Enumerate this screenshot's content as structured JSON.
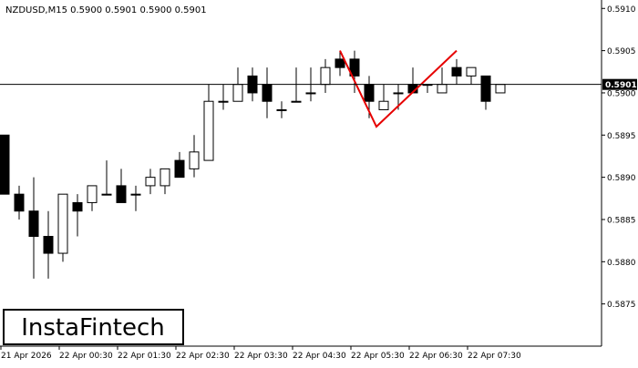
{
  "chart_data": {
    "type": "candlestick",
    "title": "NZDUSD,M15  0.5900 0.5901 0.5900 0.5901",
    "symbol": "NZDUSD",
    "timeframe": "M15",
    "ohlc_readout": "0.5900 0.5901 0.5900 0.5901",
    "ylim": [
      0.587,
      0.5911
    ],
    "y_ticks": [
      "0.5910",
      "0.5905",
      "0.5900",
      "0.5895",
      "0.5890",
      "0.5885",
      "0.5880",
      "0.5875"
    ],
    "x_ticks": [
      {
        "index": 0,
        "label": "21 Apr 2026"
      },
      {
        "index": 4,
        "label": "22 Apr 00:30"
      },
      {
        "index": 8,
        "label": "22 Apr 01:30"
      },
      {
        "index": 12,
        "label": "22 Apr 02:30"
      },
      {
        "index": 16,
        "label": "22 Apr 03:30"
      },
      {
        "index": 20,
        "label": "22 Apr 04:30"
      },
      {
        "index": 24,
        "label": "22 Apr 05:30"
      },
      {
        "index": 28,
        "label": "22 Apr 06:30"
      },
      {
        "index": 32,
        "label": "22 Apr 07:30"
      }
    ],
    "current_price": 0.5901,
    "current_price_label": "0.5901",
    "candles": [
      {
        "o": 0.5895,
        "h": 0.5895,
        "l": 0.5888,
        "c": 0.5888
      },
      {
        "o": 0.5888,
        "h": 0.5889,
        "l": 0.5885,
        "c": 0.5886
      },
      {
        "o": 0.5886,
        "h": 0.589,
        "l": 0.5878,
        "c": 0.5883
      },
      {
        "o": 0.5883,
        "h": 0.5886,
        "l": 0.5878,
        "c": 0.5881
      },
      {
        "o": 0.5881,
        "h": 0.5888,
        "l": 0.588,
        "c": 0.5888
      },
      {
        "o": 0.5887,
        "h": 0.5888,
        "l": 0.5883,
        "c": 0.5886
      },
      {
        "o": 0.5887,
        "h": 0.5889,
        "l": 0.5886,
        "c": 0.5889
      },
      {
        "o": 0.5888,
        "h": 0.5892,
        "l": 0.5888,
        "c": 0.5888
      },
      {
        "o": 0.5889,
        "h": 0.5891,
        "l": 0.5887,
        "c": 0.5887
      },
      {
        "o": 0.5888,
        "h": 0.5889,
        "l": 0.5886,
        "c": 0.5888
      },
      {
        "o": 0.5889,
        "h": 0.5891,
        "l": 0.5888,
        "c": 0.589
      },
      {
        "o": 0.5889,
        "h": 0.5891,
        "l": 0.5888,
        "c": 0.5891
      },
      {
        "o": 0.5892,
        "h": 0.5893,
        "l": 0.589,
        "c": 0.589
      },
      {
        "o": 0.5891,
        "h": 0.5895,
        "l": 0.589,
        "c": 0.5893
      },
      {
        "o": 0.5892,
        "h": 0.5901,
        "l": 0.5892,
        "c": 0.5899
      },
      {
        "o": 0.5899,
        "h": 0.5901,
        "l": 0.5898,
        "c": 0.5899
      },
      {
        "o": 0.5899,
        "h": 0.5903,
        "l": 0.5899,
        "c": 0.5901
      },
      {
        "o": 0.5902,
        "h": 0.5903,
        "l": 0.5899,
        "c": 0.59
      },
      {
        "o": 0.5901,
        "h": 0.5903,
        "l": 0.5897,
        "c": 0.5899
      },
      {
        "o": 0.5898,
        "h": 0.5899,
        "l": 0.5897,
        "c": 0.5898
      },
      {
        "o": 0.5899,
        "h": 0.5903,
        "l": 0.5899,
        "c": 0.5899
      },
      {
        "o": 0.59,
        "h": 0.5903,
        "l": 0.5899,
        "c": 0.59
      },
      {
        "o": 0.5901,
        "h": 0.5904,
        "l": 0.59,
        "c": 0.5903
      },
      {
        "o": 0.5904,
        "h": 0.5905,
        "l": 0.5902,
        "c": 0.5903
      },
      {
        "o": 0.5904,
        "h": 0.5905,
        "l": 0.59,
        "c": 0.5902
      },
      {
        "o": 0.5901,
        "h": 0.5902,
        "l": 0.5897,
        "c": 0.5899
      },
      {
        "o": 0.5898,
        "h": 0.5901,
        "l": 0.5898,
        "c": 0.5899
      },
      {
        "o": 0.59,
        "h": 0.5901,
        "l": 0.5898,
        "c": 0.59
      },
      {
        "o": 0.5901,
        "h": 0.5903,
        "l": 0.59,
        "c": 0.59
      },
      {
        "o": 0.5901,
        "h": 0.5901,
        "l": 0.59,
        "c": 0.5901
      },
      {
        "o": 0.59,
        "h": 0.5903,
        "l": 0.59,
        "c": 0.5901
      },
      {
        "o": 0.5903,
        "h": 0.5904,
        "l": 0.5901,
        "c": 0.5902
      },
      {
        "o": 0.5902,
        "h": 0.5903,
        "l": 0.5901,
        "c": 0.5903
      },
      {
        "o": 0.5902,
        "h": 0.5902,
        "l": 0.5898,
        "c": 0.5899
      },
      {
        "o": 0.59,
        "h": 0.5901,
        "l": 0.59,
        "c": 0.5901
      }
    ],
    "pattern": {
      "name": "Double Top",
      "color": "#e60000",
      "points": [
        {
          "index": 23,
          "price": 0.5905
        },
        {
          "index": 25.5,
          "price": 0.5896
        },
        {
          "index": 31,
          "price": 0.5905
        }
      ]
    },
    "colors": {
      "bull_body": "#ffffff",
      "bear_body": "#000000",
      "wick": "#000000",
      "axis": "#000000",
      "text": "#000000",
      "background": "#ffffff"
    }
  },
  "brand": {
    "logo_text": "InstaFintech"
  }
}
